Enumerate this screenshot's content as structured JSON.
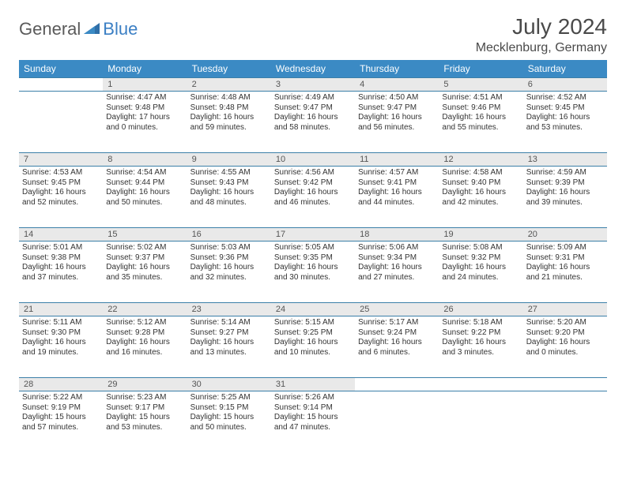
{
  "brand": {
    "part1": "General",
    "part2": "Blue"
  },
  "title": "July 2024",
  "location": "Mecklenburg, Germany",
  "colors": {
    "header_bg": "#3b8ac4",
    "header_text": "#ffffff",
    "daynum_bg": "#e9e9e9",
    "border": "#3b7fa8",
    "text": "#333333",
    "brand_gray": "#5a5a5a",
    "brand_blue": "#3b7fc4"
  },
  "weekdays": [
    "Sunday",
    "Monday",
    "Tuesday",
    "Wednesday",
    "Thursday",
    "Friday",
    "Saturday"
  ],
  "weeks": [
    {
      "nums": [
        "",
        "1",
        "2",
        "3",
        "4",
        "5",
        "6"
      ],
      "cells": [
        {
          "sunrise": "",
          "sunset": "",
          "daylight": ""
        },
        {
          "sunrise": "Sunrise: 4:47 AM",
          "sunset": "Sunset: 9:48 PM",
          "daylight": "Daylight: 17 hours and 0 minutes."
        },
        {
          "sunrise": "Sunrise: 4:48 AM",
          "sunset": "Sunset: 9:48 PM",
          "daylight": "Daylight: 16 hours and 59 minutes."
        },
        {
          "sunrise": "Sunrise: 4:49 AM",
          "sunset": "Sunset: 9:47 PM",
          "daylight": "Daylight: 16 hours and 58 minutes."
        },
        {
          "sunrise": "Sunrise: 4:50 AM",
          "sunset": "Sunset: 9:47 PM",
          "daylight": "Daylight: 16 hours and 56 minutes."
        },
        {
          "sunrise": "Sunrise: 4:51 AM",
          "sunset": "Sunset: 9:46 PM",
          "daylight": "Daylight: 16 hours and 55 minutes."
        },
        {
          "sunrise": "Sunrise: 4:52 AM",
          "sunset": "Sunset: 9:45 PM",
          "daylight": "Daylight: 16 hours and 53 minutes."
        }
      ]
    },
    {
      "nums": [
        "7",
        "8",
        "9",
        "10",
        "11",
        "12",
        "13"
      ],
      "cells": [
        {
          "sunrise": "Sunrise: 4:53 AM",
          "sunset": "Sunset: 9:45 PM",
          "daylight": "Daylight: 16 hours and 52 minutes."
        },
        {
          "sunrise": "Sunrise: 4:54 AM",
          "sunset": "Sunset: 9:44 PM",
          "daylight": "Daylight: 16 hours and 50 minutes."
        },
        {
          "sunrise": "Sunrise: 4:55 AM",
          "sunset": "Sunset: 9:43 PM",
          "daylight": "Daylight: 16 hours and 48 minutes."
        },
        {
          "sunrise": "Sunrise: 4:56 AM",
          "sunset": "Sunset: 9:42 PM",
          "daylight": "Daylight: 16 hours and 46 minutes."
        },
        {
          "sunrise": "Sunrise: 4:57 AM",
          "sunset": "Sunset: 9:41 PM",
          "daylight": "Daylight: 16 hours and 44 minutes."
        },
        {
          "sunrise": "Sunrise: 4:58 AM",
          "sunset": "Sunset: 9:40 PM",
          "daylight": "Daylight: 16 hours and 42 minutes."
        },
        {
          "sunrise": "Sunrise: 4:59 AM",
          "sunset": "Sunset: 9:39 PM",
          "daylight": "Daylight: 16 hours and 39 minutes."
        }
      ]
    },
    {
      "nums": [
        "14",
        "15",
        "16",
        "17",
        "18",
        "19",
        "20"
      ],
      "cells": [
        {
          "sunrise": "Sunrise: 5:01 AM",
          "sunset": "Sunset: 9:38 PM",
          "daylight": "Daylight: 16 hours and 37 minutes."
        },
        {
          "sunrise": "Sunrise: 5:02 AM",
          "sunset": "Sunset: 9:37 PM",
          "daylight": "Daylight: 16 hours and 35 minutes."
        },
        {
          "sunrise": "Sunrise: 5:03 AM",
          "sunset": "Sunset: 9:36 PM",
          "daylight": "Daylight: 16 hours and 32 minutes."
        },
        {
          "sunrise": "Sunrise: 5:05 AM",
          "sunset": "Sunset: 9:35 PM",
          "daylight": "Daylight: 16 hours and 30 minutes."
        },
        {
          "sunrise": "Sunrise: 5:06 AM",
          "sunset": "Sunset: 9:34 PM",
          "daylight": "Daylight: 16 hours and 27 minutes."
        },
        {
          "sunrise": "Sunrise: 5:08 AM",
          "sunset": "Sunset: 9:32 PM",
          "daylight": "Daylight: 16 hours and 24 minutes."
        },
        {
          "sunrise": "Sunrise: 5:09 AM",
          "sunset": "Sunset: 9:31 PM",
          "daylight": "Daylight: 16 hours and 21 minutes."
        }
      ]
    },
    {
      "nums": [
        "21",
        "22",
        "23",
        "24",
        "25",
        "26",
        "27"
      ],
      "cells": [
        {
          "sunrise": "Sunrise: 5:11 AM",
          "sunset": "Sunset: 9:30 PM",
          "daylight": "Daylight: 16 hours and 19 minutes."
        },
        {
          "sunrise": "Sunrise: 5:12 AM",
          "sunset": "Sunset: 9:28 PM",
          "daylight": "Daylight: 16 hours and 16 minutes."
        },
        {
          "sunrise": "Sunrise: 5:14 AM",
          "sunset": "Sunset: 9:27 PM",
          "daylight": "Daylight: 16 hours and 13 minutes."
        },
        {
          "sunrise": "Sunrise: 5:15 AM",
          "sunset": "Sunset: 9:25 PM",
          "daylight": "Daylight: 16 hours and 10 minutes."
        },
        {
          "sunrise": "Sunrise: 5:17 AM",
          "sunset": "Sunset: 9:24 PM",
          "daylight": "Daylight: 16 hours and 6 minutes."
        },
        {
          "sunrise": "Sunrise: 5:18 AM",
          "sunset": "Sunset: 9:22 PM",
          "daylight": "Daylight: 16 hours and 3 minutes."
        },
        {
          "sunrise": "Sunrise: 5:20 AM",
          "sunset": "Sunset: 9:20 PM",
          "daylight": "Daylight: 16 hours and 0 minutes."
        }
      ]
    },
    {
      "nums": [
        "28",
        "29",
        "30",
        "31",
        "",
        "",
        ""
      ],
      "cells": [
        {
          "sunrise": "Sunrise: 5:22 AM",
          "sunset": "Sunset: 9:19 PM",
          "daylight": "Daylight: 15 hours and 57 minutes."
        },
        {
          "sunrise": "Sunrise: 5:23 AM",
          "sunset": "Sunset: 9:17 PM",
          "daylight": "Daylight: 15 hours and 53 minutes."
        },
        {
          "sunrise": "Sunrise: 5:25 AM",
          "sunset": "Sunset: 9:15 PM",
          "daylight": "Daylight: 15 hours and 50 minutes."
        },
        {
          "sunrise": "Sunrise: 5:26 AM",
          "sunset": "Sunset: 9:14 PM",
          "daylight": "Daylight: 15 hours and 47 minutes."
        },
        {
          "sunrise": "",
          "sunset": "",
          "daylight": ""
        },
        {
          "sunrise": "",
          "sunset": "",
          "daylight": ""
        },
        {
          "sunrise": "",
          "sunset": "",
          "daylight": ""
        }
      ]
    }
  ]
}
